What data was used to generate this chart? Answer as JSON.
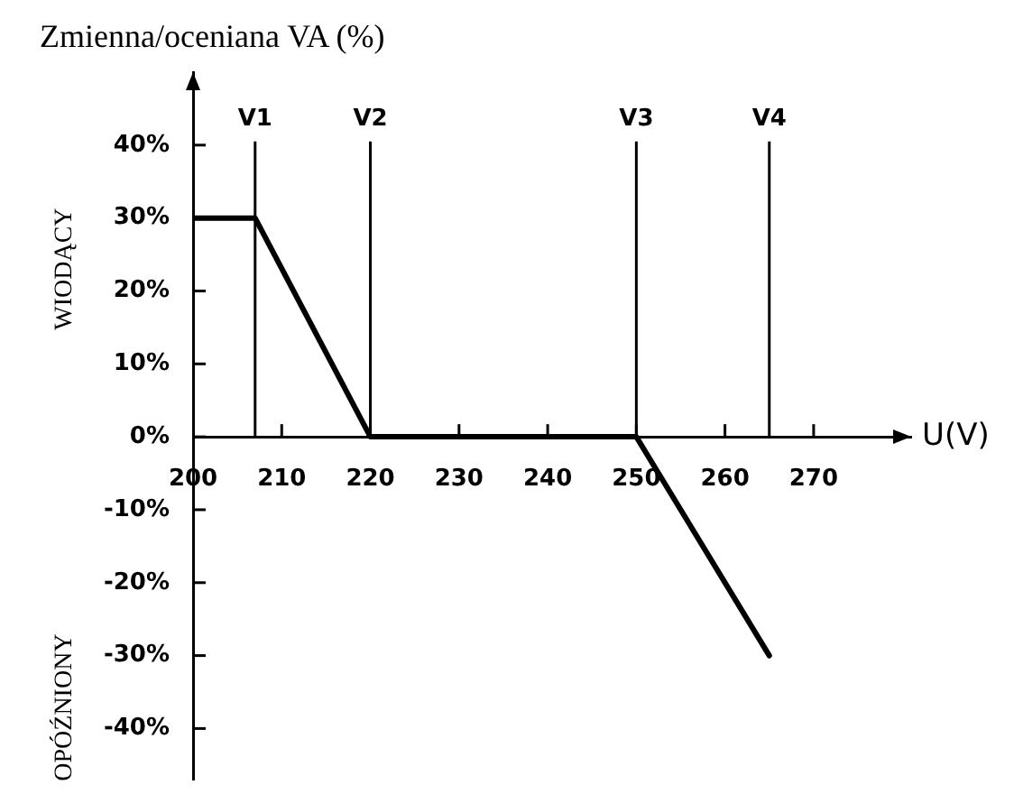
{
  "chart_data": {
    "type": "line",
    "title": "Zmienna/oceniana VA (%)",
    "xlabel": "U(V)",
    "annotations": [
      "WIODĄCY",
      "OPÓŹNIONY"
    ],
    "x": [
      200,
      207,
      220,
      250,
      265
    ],
    "series": [
      {
        "color": "#000000",
        "values": [
          30,
          30,
          0,
          0,
          -30
        ]
      }
    ],
    "xlim": [
      200,
      281
    ],
    "ylim": [
      -47,
      50
    ],
    "xticks": [
      200,
      210,
      220,
      230,
      240,
      250,
      260,
      270
    ],
    "yticks": [
      {
        "value": 40,
        "label": "40%"
      },
      {
        "value": 30,
        "label": "30%"
      },
      {
        "value": 20,
        "label": "20%"
      },
      {
        "value": 10,
        "label": "10%"
      },
      {
        "value": 0,
        "label": "0%"
      },
      {
        "value": -10,
        "label": "-10%"
      },
      {
        "value": -20,
        "label": "-20%"
      },
      {
        "value": -30,
        "label": "-30%"
      },
      {
        "value": -40,
        "label": "-40%"
      }
    ],
    "ref_lines": [
      {
        "axis": "x",
        "value": 207,
        "label": "V1"
      },
      {
        "axis": "x",
        "value": 220,
        "label": "V2"
      },
      {
        "axis": "x",
        "value": 250,
        "label": "V3"
      },
      {
        "axis": "x",
        "value": 265,
        "label": "V4"
      }
    ],
    "marker": "none",
    "line_style": "solid",
    "grid": false,
    "legend": false
  }
}
